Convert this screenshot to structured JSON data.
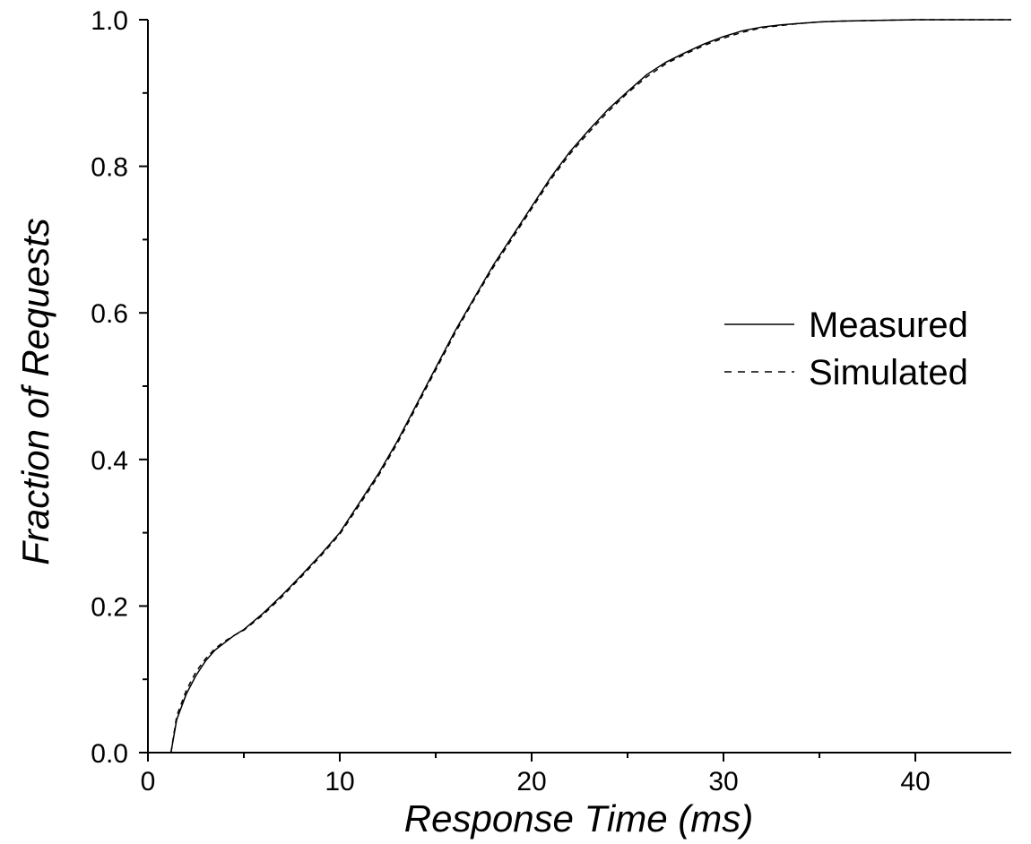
{
  "chart_data": {
    "type": "line",
    "xlabel": "Response Time (ms)",
    "ylabel": "Fraction of Requests",
    "xlim": [
      0,
      45
    ],
    "ylim": [
      0,
      1.0
    ],
    "x_ticks": [
      0,
      10,
      20,
      30,
      40
    ],
    "x_tick_labels": [
      "0",
      "10",
      "20",
      "30",
      "40"
    ],
    "y_ticks": [
      0,
      0.2,
      0.4,
      0.6,
      0.8,
      1.0
    ],
    "y_tick_labels": [
      "0.0",
      "0.2",
      "0.4",
      "0.6",
      "0.8",
      "1.0"
    ],
    "legend_position": "right",
    "series": [
      {
        "name": "Measured",
        "style": "solid",
        "color": "#000000",
        "x": [
          1.2,
          1.5,
          2.0,
          2.5,
          3.0,
          3.5,
          4.0,
          4.5,
          5.0,
          6.0,
          7.0,
          8.0,
          9.0,
          10.0,
          11.0,
          12.0,
          13.0,
          14.0,
          15.0,
          16.0,
          17.0,
          18.0,
          19.0,
          20.0,
          21.0,
          22.0,
          23.0,
          24.0,
          25.0,
          26.0,
          27.0,
          28.0,
          29.0,
          30.0,
          31.0,
          32.0,
          33.0,
          34.0,
          35.0,
          36.0,
          38.0,
          40.0,
          42.0,
          45.0
        ],
        "y": [
          0.0,
          0.045,
          0.08,
          0.105,
          0.125,
          0.14,
          0.15,
          0.16,
          0.168,
          0.19,
          0.215,
          0.242,
          0.27,
          0.3,
          0.34,
          0.38,
          0.425,
          0.475,
          0.525,
          0.575,
          0.62,
          0.665,
          0.705,
          0.745,
          0.785,
          0.82,
          0.85,
          0.878,
          0.902,
          0.925,
          0.942,
          0.955,
          0.967,
          0.977,
          0.985,
          0.99,
          0.993,
          0.995,
          0.997,
          0.998,
          0.999,
          1.0,
          1.0,
          1.0
        ]
      },
      {
        "name": "Simulated",
        "style": "dashed",
        "color": "#000000",
        "x": [
          1.2,
          1.5,
          2.0,
          2.5,
          3.0,
          3.5,
          4.0,
          4.5,
          5.0,
          6.0,
          7.0,
          8.0,
          9.0,
          10.0,
          11.0,
          12.0,
          13.0,
          14.0,
          15.0,
          16.0,
          17.0,
          18.0,
          19.0,
          20.0,
          21.0,
          22.0,
          23.0,
          24.0,
          25.0,
          26.0,
          27.0,
          28.0,
          29.0,
          30.0,
          31.0,
          32.0,
          33.0,
          34.0,
          35.0,
          36.0,
          38.0,
          40.0,
          42.0,
          45.0
        ],
        "y": [
          0.0,
          0.05,
          0.085,
          0.11,
          0.128,
          0.142,
          0.152,
          0.16,
          0.167,
          0.188,
          0.213,
          0.24,
          0.268,
          0.298,
          0.337,
          0.377,
          0.422,
          0.472,
          0.522,
          0.572,
          0.618,
          0.662,
          0.702,
          0.742,
          0.782,
          0.817,
          0.847,
          0.875,
          0.9,
          0.922,
          0.94,
          0.953,
          0.965,
          0.975,
          0.983,
          0.989,
          0.992,
          0.995,
          0.997,
          0.998,
          0.999,
          1.0,
          1.0,
          1.0
        ]
      }
    ]
  }
}
